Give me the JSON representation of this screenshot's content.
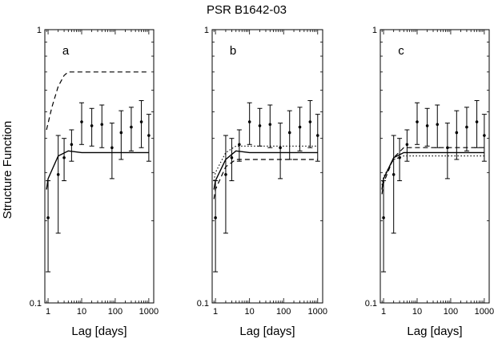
{
  "figure": {
    "title": "PSR B1642-03",
    "ylabel": "Structure Function"
  },
  "chart_data": [
    {
      "panel": "a",
      "type": "scatter",
      "xlabel": "Lag [days]",
      "x_scale": "log",
      "y_scale": "log",
      "xlim": [
        0.8,
        1400
      ],
      "ylim": [
        0.1,
        1
      ],
      "x_ticks": [
        1,
        10,
        100,
        1000
      ],
      "y_ticks": [
        0.1,
        1
      ],
      "grid": false,
      "observed": {
        "x": [
          1,
          2,
          3,
          5,
          10,
          20,
          40,
          80,
          150,
          300,
          600,
          1000
        ],
        "y": [
          0.205,
          0.295,
          0.34,
          0.38,
          0.46,
          0.445,
          0.45,
          0.37,
          0.42,
          0.44,
          0.46,
          0.41
        ],
        "err": [
          0.075,
          0.115,
          0.06,
          0.05,
          0.08,
          0.07,
          0.08,
          0.085,
          0.085,
          0.08,
          0.09,
          0.08
        ]
      },
      "models": [
        {
          "style": "solid",
          "x": [
            0.9,
            1,
            2,
            4,
            10,
            100,
            1000
          ],
          "y": [
            0.26,
            0.285,
            0.345,
            0.36,
            0.355,
            0.355,
            0.355
          ]
        },
        {
          "style": "dashed",
          "x": [
            0.9,
            1.3,
            2,
            3,
            4,
            10,
            100,
            1000
          ],
          "y": [
            0.43,
            0.52,
            0.62,
            0.68,
            0.7,
            0.7,
            0.7,
            0.7
          ]
        }
      ]
    },
    {
      "panel": "b",
      "type": "scatter",
      "xlabel": "Lag [days]",
      "x_scale": "log",
      "y_scale": "log",
      "xlim": [
        0.8,
        1400
      ],
      "ylim": [
        0.1,
        1
      ],
      "x_ticks": [
        1,
        10,
        100,
        1000
      ],
      "y_ticks": [
        0.1,
        1
      ],
      "grid": false,
      "observed": {
        "x": [
          1,
          2,
          3,
          5,
          10,
          20,
          40,
          80,
          150,
          300,
          600,
          1000
        ],
        "y": [
          0.205,
          0.295,
          0.34,
          0.38,
          0.46,
          0.445,
          0.45,
          0.37,
          0.42,
          0.44,
          0.46,
          0.41
        ],
        "err": [
          0.075,
          0.115,
          0.06,
          0.05,
          0.08,
          0.07,
          0.08,
          0.085,
          0.085,
          0.08,
          0.09,
          0.08
        ]
      },
      "models": [
        {
          "style": "solid",
          "x": [
            0.9,
            1,
            2,
            4,
            10,
            100,
            1000
          ],
          "y": [
            0.26,
            0.28,
            0.335,
            0.36,
            0.355,
            0.355,
            0.355
          ]
        },
        {
          "style": "dashed",
          "x": [
            0.9,
            1,
            2,
            4,
            10,
            100,
            1000
          ],
          "y": [
            0.24,
            0.26,
            0.315,
            0.335,
            0.335,
            0.335,
            0.335
          ]
        },
        {
          "style": "dotted",
          "x": [
            0.9,
            1,
            2,
            4,
            10,
            100,
            1000
          ],
          "y": [
            0.28,
            0.3,
            0.355,
            0.375,
            0.375,
            0.375,
            0.375
          ]
        }
      ]
    },
    {
      "panel": "c",
      "type": "scatter",
      "xlabel": "Lag [days]",
      "x_scale": "log",
      "y_scale": "log",
      "xlim": [
        0.8,
        1400
      ],
      "ylim": [
        0.1,
        1
      ],
      "x_ticks": [
        1,
        10,
        100,
        1000
      ],
      "y_ticks": [
        0.1,
        1
      ],
      "grid": false,
      "observed": {
        "x": [
          1,
          2,
          3,
          5,
          10,
          20,
          40,
          80,
          150,
          300,
          600,
          1000
        ],
        "y": [
          0.205,
          0.295,
          0.34,
          0.38,
          0.46,
          0.445,
          0.45,
          0.37,
          0.42,
          0.44,
          0.46,
          0.41
        ],
        "err": [
          0.075,
          0.115,
          0.06,
          0.05,
          0.08,
          0.07,
          0.08,
          0.085,
          0.085,
          0.08,
          0.09,
          0.08
        ]
      },
      "models": [
        {
          "style": "solid",
          "x": [
            0.9,
            1,
            2,
            4,
            10,
            100,
            1000
          ],
          "y": [
            0.26,
            0.285,
            0.34,
            0.355,
            0.355,
            0.355,
            0.355
          ]
        },
        {
          "style": "dashed",
          "x": [
            0.9,
            1,
            2,
            4,
            10,
            100,
            1000
          ],
          "y": [
            0.25,
            0.275,
            0.34,
            0.37,
            0.37,
            0.37,
            0.37
          ]
        },
        {
          "style": "dotted",
          "x": [
            0.9,
            1,
            2,
            4,
            10,
            100,
            1000
          ],
          "y": [
            0.27,
            0.29,
            0.335,
            0.345,
            0.345,
            0.345,
            0.345
          ]
        }
      ]
    }
  ]
}
